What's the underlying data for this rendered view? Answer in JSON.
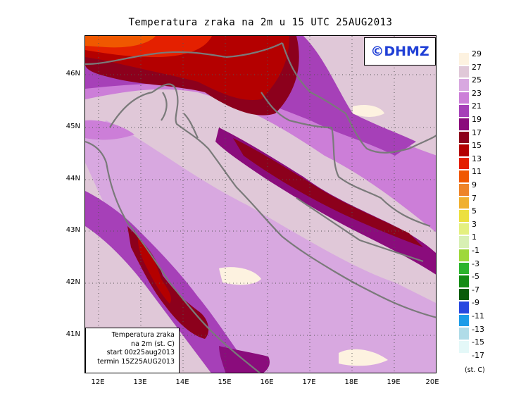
{
  "title": "Temperatura zraka na 2m u 15 UTC 25AUG2013",
  "logo": "©DHMZ",
  "info_box": {
    "line1": "Temperatura zraka",
    "line2": "na 2m (st. C)",
    "line3": "start 00z25aug2013",
    "line4": "termin 15Z25AUG2013"
  },
  "lat_labels": [
    "46N",
    "45N",
    "44N",
    "43N",
    "42N",
    "41N"
  ],
  "lon_labels": [
    "12E",
    "13E",
    "14E",
    "15E",
    "16E",
    "17E",
    "18E",
    "19E",
    "20E"
  ],
  "colorbar": {
    "unit": "(st. C)",
    "labels": [
      "29",
      "27",
      "25",
      "23",
      "21",
      "19",
      "17",
      "15",
      "13",
      "11",
      "9",
      "7",
      "5",
      "3",
      "1",
      "-1",
      "-3",
      "-5",
      "-7",
      "-9",
      "-11",
      "-13",
      "-15",
      "-17"
    ],
    "colors": [
      "#fdf2e0",
      "#e0c8d8",
      "#d8a8e0",
      "#cc7ed8",
      "#a640b8",
      "#8a0c7c",
      "#8c001c",
      "#b40000",
      "#e42000",
      "#f05800",
      "#ee8428",
      "#f0b030",
      "#ece040",
      "#e4f080",
      "#d8f0b4",
      "#9ed83c",
      "#2cb42c",
      "#148c14",
      "#0a5c0a",
      "#2848e0",
      "#1c9ce8",
      "#b0dce8",
      "#e4f8f8"
    ]
  },
  "chart_data": {
    "type": "heatmap",
    "title": "Temperatura zraka na 2m u 15 UTC 25AUG2013",
    "variable": "Temperatura zraka na 2m (st. C)",
    "lon_range": [
      11.7,
      20
    ],
    "lat_range": [
      40.3,
      46.6
    ],
    "lon_ticks": [
      12,
      13,
      14,
      15,
      16,
      17,
      18,
      19,
      20
    ],
    "lat_ticks": [
      41,
      42,
      43,
      44,
      45,
      46
    ],
    "levels": [
      -17,
      -15,
      -13,
      -11,
      -9,
      -7,
      -5,
      -3,
      -1,
      1,
      3,
      5,
      7,
      9,
      11,
      13,
      15,
      17,
      19,
      21,
      23,
      25,
      27,
      29
    ]
  }
}
